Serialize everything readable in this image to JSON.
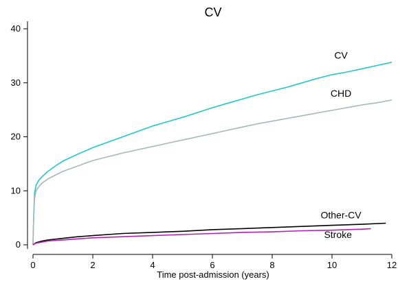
{
  "chart_data": {
    "type": "line",
    "title": "CV",
    "xlabel": "Time post-admission (years)",
    "ylabel": "",
    "xlim": [
      0,
      12
    ],
    "ylim": [
      0,
      40
    ],
    "xticks": [
      0,
      2,
      4,
      6,
      8,
      10,
      12
    ],
    "yticks": [
      0,
      10,
      20,
      30,
      40
    ],
    "grid": false,
    "legend": "none",
    "series": [
      {
        "name": "CV",
        "color": "#1ec8c8",
        "x": [
          0,
          0.02,
          0.05,
          0.1,
          0.2,
          0.3,
          0.5,
          0.75,
          1,
          1.5,
          2,
          2.5,
          3,
          3.5,
          4,
          4.5,
          5,
          5.5,
          6,
          6.5,
          7,
          7.5,
          8,
          8.5,
          9,
          9.5,
          10,
          10.5,
          11,
          11.5,
          12
        ],
        "values": [
          0,
          5,
          9.5,
          11,
          12,
          12.6,
          13.6,
          14.6,
          15.5,
          16.8,
          18,
          19,
          20,
          21,
          22,
          22.8,
          23.6,
          24.5,
          25.4,
          26.2,
          27,
          27.8,
          28.5,
          29.2,
          30,
          30.8,
          31.5,
          32,
          32.6,
          33.2,
          33.8
        ],
        "label_x": 10.3,
        "label_y": 34.5
      },
      {
        "name": "CHD",
        "color": "#a9b6b9",
        "x": [
          0,
          0.02,
          0.05,
          0.1,
          0.2,
          0.3,
          0.5,
          0.75,
          1,
          1.5,
          2,
          2.5,
          3,
          3.5,
          4,
          4.5,
          5,
          5.5,
          6,
          6.5,
          7,
          7.5,
          8,
          8.5,
          9,
          9.5,
          10,
          10.5,
          11,
          11.5,
          12
        ],
        "values": [
          0,
          4.5,
          8.5,
          10,
          10.8,
          11.4,
          12.2,
          12.9,
          13.6,
          14.6,
          15.6,
          16.3,
          17,
          17.6,
          18.2,
          18.8,
          19.4,
          20,
          20.6,
          21.2,
          21.8,
          22.4,
          22.9,
          23.4,
          23.9,
          24.4,
          24.9,
          25.4,
          25.9,
          26.3,
          26.8
        ],
        "label_x": 10.3,
        "label_y": 27.4
      },
      {
        "name": "Other-CV",
        "color": "#000000",
        "x": [
          0,
          0.1,
          0.3,
          0.5,
          1,
          1.5,
          2,
          3,
          4,
          5,
          6,
          7,
          8,
          9,
          10,
          11,
          11.8
        ],
        "values": [
          0,
          0.4,
          0.7,
          0.9,
          1.2,
          1.5,
          1.7,
          2.1,
          2.3,
          2.5,
          2.8,
          3,
          3.2,
          3.4,
          3.6,
          3.8,
          4
        ],
        "label_x": 10.3,
        "label_y": 4.9
      },
      {
        "name": "Stroke",
        "color": "#b41eb4",
        "x": [
          0,
          0.1,
          0.3,
          0.5,
          1,
          1.5,
          2,
          3,
          4,
          5,
          6,
          7,
          8,
          9,
          10,
          11,
          11.3
        ],
        "values": [
          0,
          0.3,
          0.5,
          0.7,
          0.9,
          1.1,
          1.3,
          1.5,
          1.7,
          1.9,
          2.1,
          2.3,
          2.4,
          2.6,
          2.7,
          2.9,
          3
        ],
        "label_x": 10.2,
        "label_y": 1.3
      }
    ]
  }
}
